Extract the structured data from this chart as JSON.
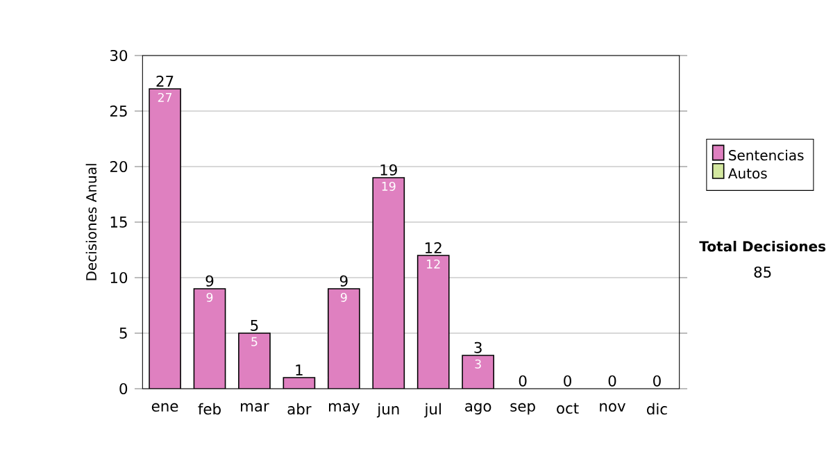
{
  "chart_data": {
    "type": "bar",
    "stacked": true,
    "ylabel": "Decisiones Anual",
    "categories": [
      "ene",
      "feb",
      "mar",
      "abr",
      "may",
      "jun",
      "jul",
      "ago",
      "sep",
      "oct",
      "nov",
      "dic"
    ],
    "series": [
      {
        "name": "Sentencias",
        "color": "#df80c0",
        "values": [
          27,
          9,
          5,
          1,
          9,
          19,
          12,
          3,
          0,
          0,
          0,
          0
        ],
        "value_labels": [
          "27",
          "9",
          "5",
          null,
          "9",
          "19",
          "12",
          "3",
          null,
          null,
          null,
          null
        ]
      },
      {
        "name": "Autos",
        "color": "#d4e8a0",
        "values": [
          0,
          0,
          0,
          0,
          0,
          0,
          0,
          0,
          0,
          0,
          0,
          0
        ]
      }
    ],
    "totals": [
      "27",
      "9",
      "5",
      "1",
      "9",
      "19",
      "12",
      "3",
      "0",
      "0",
      "0",
      "0"
    ],
    "ylim": [
      0,
      30
    ],
    "yticks": [
      0,
      5,
      10,
      15,
      20,
      25,
      30
    ],
    "grid": "y",
    "legend": "right",
    "annotations": [
      "Total Decisiones",
      "85"
    ]
  }
}
